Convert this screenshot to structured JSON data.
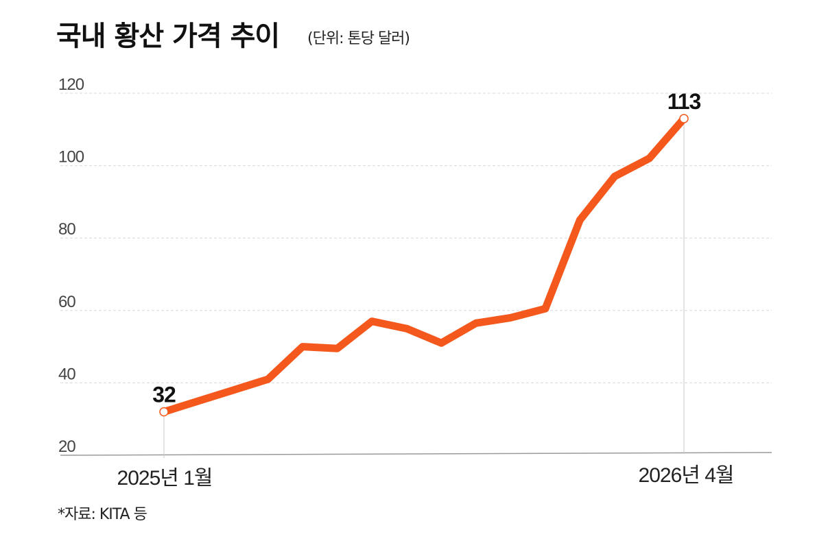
{
  "chart_data": {
    "type": "line",
    "title": "국내 황산 가격 추이",
    "subtitle": "(단위: 톤당 달러)",
    "source": "*자료: KITA 등",
    "xlabel": "",
    "ylabel": "",
    "x_labels": {
      "start": "2025년 1월",
      "end": "2026년 4월"
    },
    "x": [
      "2025-01",
      "2025-02",
      "2025-03",
      "2025-04",
      "2025-05",
      "2025-06",
      "2025-07",
      "2025-08",
      "2025-09",
      "2025-10",
      "2025-11",
      "2025-12",
      "2026-01",
      "2026-02",
      "2026-03",
      "2026-04"
    ],
    "series": [
      {
        "name": "국내 황산 가격",
        "values": [
          32,
          35,
          38,
          41,
          50,
          49.5,
          57,
          55,
          51,
          56.5,
          58,
          60.5,
          85,
          97,
          102,
          113
        ],
        "color": "#f4581c"
      }
    ],
    "highlights": [
      {
        "label": "32",
        "value": 32,
        "index": 0
      },
      {
        "label": "113",
        "value": 113,
        "index": 15
      }
    ],
    "ylim": [
      20,
      120
    ],
    "yticks": [
      {
        "value": 120,
        "label": "120"
      },
      {
        "value": 100,
        "label": "100"
      },
      {
        "value": 80,
        "label": "80"
      },
      {
        "value": 60,
        "label": "60"
      },
      {
        "value": 40,
        "label": "40"
      },
      {
        "value": 20,
        "label": "20"
      }
    ],
    "grid": true,
    "colors": {
      "line": "#f4581c",
      "grid": "#d8d8d8",
      "axis": "#9a9a9a",
      "marker_fill": "#ffffff"
    }
  }
}
